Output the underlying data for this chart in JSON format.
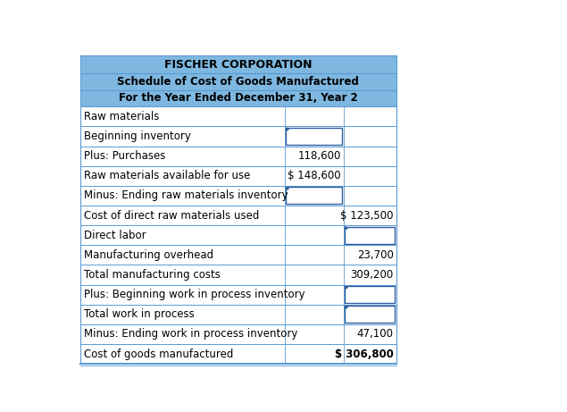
{
  "title1": "FISCHER CORPORATION",
  "title2": "Schedule of Cost of Goods Manufactured",
  "title3": "For the Year Ended December 31, Year 2",
  "header_bg": "#7eb8e0",
  "border_color": "#5b9bd5",
  "dark_border": "#2e5fa3",
  "rows": [
    {
      "label": "Raw materials",
      "col1": "",
      "col2": "",
      "col1_border": false,
      "col2_border": false,
      "col2_bold": false,
      "last": false
    },
    {
      "label": "Beginning inventory",
      "col1": "",
      "col2": "",
      "col1_border": true,
      "col2_border": false,
      "col2_bold": false,
      "last": false
    },
    {
      "label": "Plus: Purchases",
      "col1": "118,600",
      "col2": "",
      "col1_border": false,
      "col2_border": false,
      "col2_bold": false,
      "last": false
    },
    {
      "label": "Raw materials available for use",
      "col1": "$ 148,600",
      "col2": "",
      "col1_border": false,
      "col2_border": false,
      "col2_bold": false,
      "last": false
    },
    {
      "label": "Minus: Ending raw materials inventory",
      "col1": "",
      "col2": "",
      "col1_border": true,
      "col2_border": false,
      "col2_bold": false,
      "last": false
    },
    {
      "label": "Cost of direct raw materials used",
      "col1": "",
      "col2": "$ 123,500",
      "col1_border": false,
      "col2_border": false,
      "col2_bold": false,
      "last": false
    },
    {
      "label": "Direct labor",
      "col1": "",
      "col2": "",
      "col1_border": false,
      "col2_border": true,
      "col2_bold": false,
      "last": false
    },
    {
      "label": "Manufacturing overhead",
      "col1": "",
      "col2": "23,700",
      "col1_border": false,
      "col2_border": false,
      "col2_bold": false,
      "last": false
    },
    {
      "label": "Total manufacturing costs",
      "col1": "",
      "col2": "309,200",
      "col1_border": false,
      "col2_border": false,
      "col2_bold": false,
      "last": false
    },
    {
      "label": "Plus: Beginning work in process inventory",
      "col1": "",
      "col2": "",
      "col1_border": false,
      "col2_border": true,
      "col2_bold": false,
      "last": false
    },
    {
      "label": "Total work in process",
      "col1": "",
      "col2": "",
      "col1_border": false,
      "col2_border": true,
      "col2_bold": false,
      "last": false
    },
    {
      "label": "Minus: Ending work in process inventory",
      "col1": "",
      "col2": "47,100",
      "col1_border": false,
      "col2_border": false,
      "col2_bold": false,
      "last": false
    },
    {
      "label": "Cost of goods manufactured",
      "col1": "",
      "col2": "$ 306,800",
      "col1_border": false,
      "col2_border": false,
      "col2_bold": true,
      "last": true
    }
  ],
  "font_size": 8.5,
  "header_font_size_1": 9.0,
  "header_font_size_23": 8.5
}
